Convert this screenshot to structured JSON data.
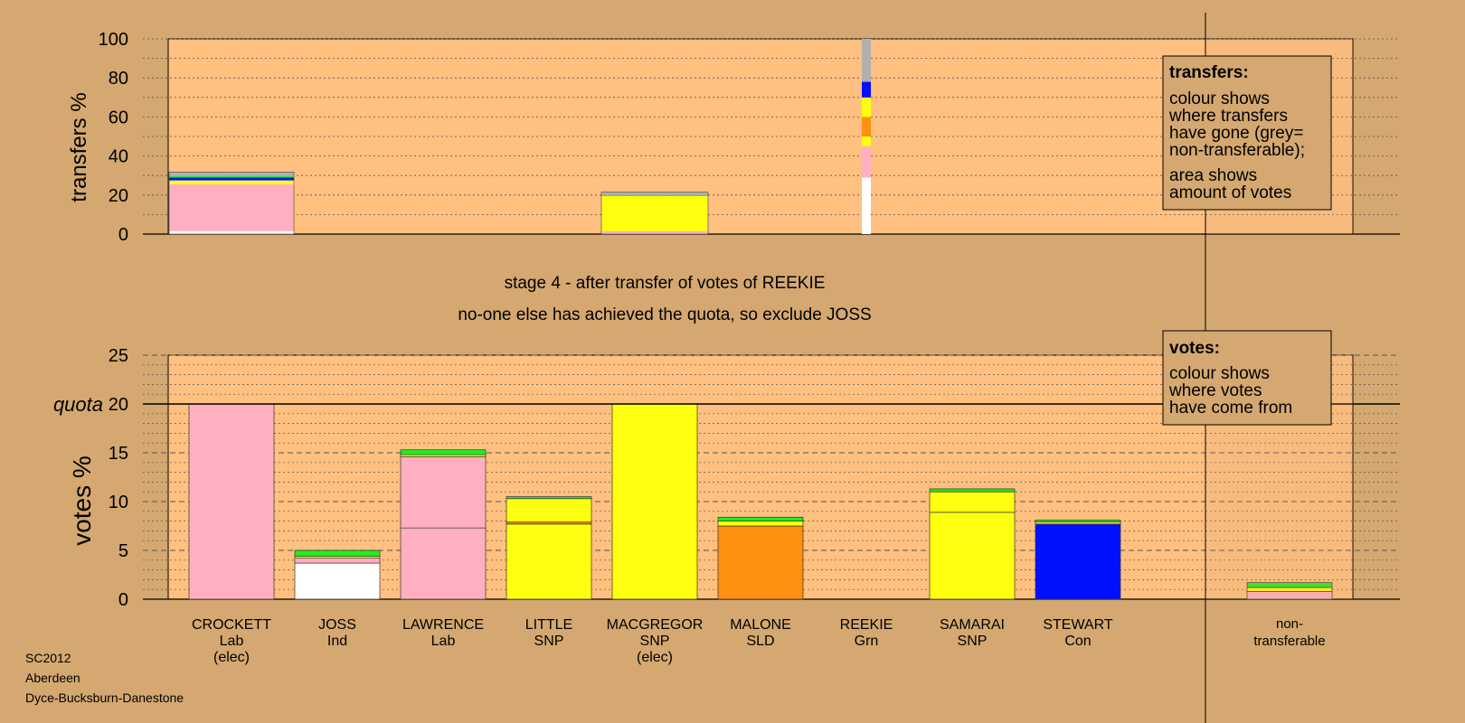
{
  "colors": {
    "background": "#d4a870",
    "plot_bg": "#ffc080",
    "Lab": "#ffb0c0",
    "Ind": "#ffffff",
    "SNP": "#ffff10",
    "SLD": "#ff9010",
    "Grn": "#20ee20",
    "Con": "#0010ff",
    "nontransferable": "#b0b0b0"
  },
  "chart_data": [
    {
      "type": "bar",
      "ylabel": "transfers %",
      "ylim": [
        0,
        100
      ],
      "yticks": [
        0,
        20,
        40,
        60,
        80,
        100
      ],
      "columns": [
        {
          "segments": [
            {
              "party": "Ind",
              "value": 1.5
            },
            {
              "party": "Lab",
              "value": 24
            },
            {
              "party": "SNP",
              "value": 2
            },
            {
              "party": "Con",
              "value": 1.5
            },
            {
              "party": "Grn",
              "value": 0.8
            },
            {
              "party": "nontransferable",
              "value": 2
            }
          ]
        },
        {
          "segments": []
        },
        {
          "segments": []
        },
        {
          "segments": []
        },
        {
          "segments": [
            {
              "party": "Lab",
              "value": 1.5
            },
            {
              "party": "SNP",
              "value": 18
            },
            {
              "party": "Grn",
              "value": 0.5
            },
            {
              "party": "nontransferable",
              "value": 1.5
            }
          ]
        },
        {
          "segments": []
        },
        {
          "segments": [
            {
              "party": "Ind",
              "value": 29
            },
            {
              "party": "Lab",
              "value": 16
            },
            {
              "party": "SNP",
              "value": 5
            },
            {
              "party": "SLD",
              "value": 10
            },
            {
              "party": "SNP",
              "value": 10
            },
            {
              "party": "Con",
              "value": 8
            },
            {
              "party": "nontransferable",
              "value": 22
            }
          ]
        },
        {
          "segments": []
        },
        {
          "segments": []
        },
        {
          "segments": []
        }
      ],
      "legend": {
        "title": "transfers:",
        "lines": [
          "colour shows",
          "where transfers",
          "have gone (grey=",
          "non-transferable);",
          "area shows",
          "amount of votes"
        ]
      }
    },
    {
      "type": "bar",
      "ylabel": "votes %",
      "ylim": [
        0,
        25
      ],
      "yticks": [
        0,
        5,
        10,
        15,
        20,
        25
      ],
      "quota": 20,
      "quota_label": "quota",
      "candidates": [
        {
          "name": "CROCKETT",
          "party": "Lab",
          "note": "(elec)",
          "segments": [
            {
              "party": "Lab",
              "value": 20
            }
          ]
        },
        {
          "name": "JOSS",
          "party": "Ind",
          "note": "",
          "segments": [
            {
              "party": "Ind",
              "value": 3.7
            },
            {
              "party": "Lab",
              "value": 0.5
            },
            {
              "party": "SNP",
              "value": 0.2
            },
            {
              "party": "Grn",
              "value": 0.6
            }
          ]
        },
        {
          "name": "LAWRENCE",
          "party": "Lab",
          "note": "",
          "segments": [
            {
              "party": "Lab",
              "value": 7.3
            },
            {
              "party": "Lab",
              "value": 7.3
            },
            {
              "party": "SNP",
              "value": 0.2
            },
            {
              "party": "Grn",
              "value": 0.5
            }
          ]
        },
        {
          "name": "LITTLE",
          "party": "SNP",
          "note": "",
          "segments": [
            {
              "party": "SNP",
              "value": 7.7
            },
            {
              "party": "SLD",
              "value": 0.2
            },
            {
              "party": "SNP",
              "value": 2.4
            },
            {
              "party": "Grn",
              "value": 0.2
            }
          ]
        },
        {
          "name": "MACGREGOR",
          "party": "SNP",
          "note": "(elec)",
          "segments": [
            {
              "party": "SNP",
              "value": 20
            }
          ]
        },
        {
          "name": "MALONE",
          "party": "SLD",
          "note": "",
          "segments": [
            {
              "party": "SLD",
              "value": 7.5
            },
            {
              "party": "SNP",
              "value": 0.5
            },
            {
              "party": "Grn",
              "value": 0.4
            }
          ]
        },
        {
          "name": "REEKIE",
          "party": "Grn",
          "note": "",
          "segments": []
        },
        {
          "name": "SAMARAI",
          "party": "SNP",
          "note": "",
          "segments": [
            {
              "party": "SNP",
              "value": 8.9
            },
            {
              "party": "SNP",
              "value": 2.1
            },
            {
              "party": "Grn",
              "value": 0.3
            }
          ]
        },
        {
          "name": "STEWART",
          "party": "Con",
          "note": "",
          "segments": [
            {
              "party": "Con",
              "value": 7.7
            },
            {
              "party": "SNP",
              "value": 0.2
            },
            {
              "party": "Grn",
              "value": 0.2
            }
          ]
        }
      ],
      "nontransferable": {
        "label_line1": "non-",
        "label_line2": "transferable",
        "segments": [
          {
            "party": "Lab",
            "value": 0.8
          },
          {
            "party": "SNP",
            "value": 0.4
          },
          {
            "party": "Grn",
            "value": 0.5
          }
        ]
      },
      "legend": {
        "title": "votes:",
        "lines": [
          "colour shows",
          "where votes",
          "have come from"
        ]
      }
    }
  ],
  "stage_title": "stage 4 - after transfer of votes of REEKIE",
  "stage_subtitle": "no-one else has achieved the quota, so exclude JOSS",
  "footer": {
    "line1": "SC2012",
    "line2": "Aberdeen",
    "line3": "Dyce-Bucksburn-Danestone"
  }
}
